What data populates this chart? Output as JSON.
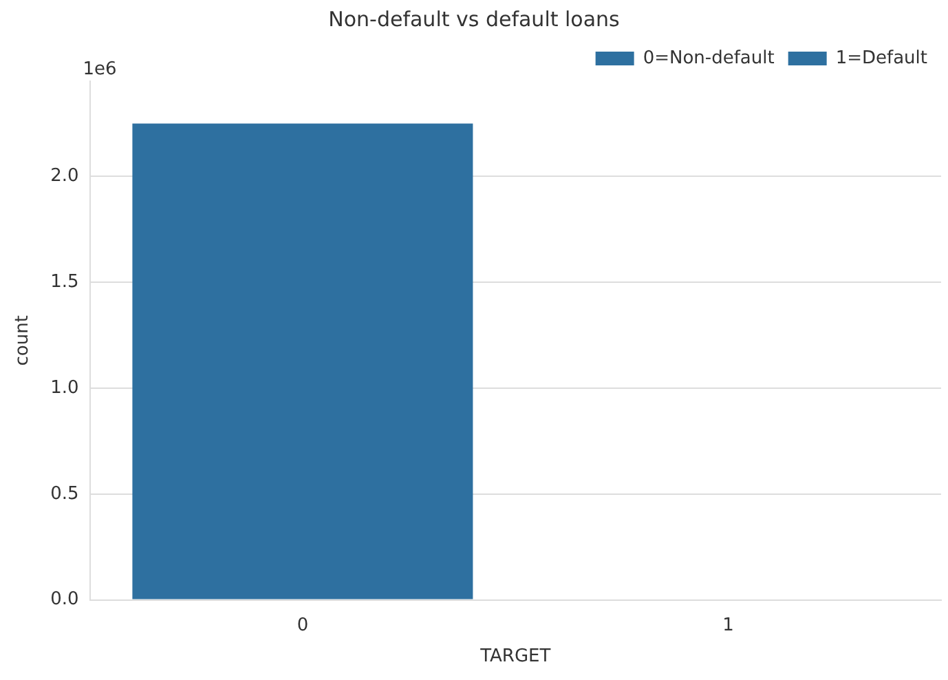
{
  "chart_data": {
    "type": "bar",
    "title": "Non-default vs default loans",
    "xlabel": "TARGET",
    "ylabel": "count",
    "categories": [
      "0",
      "1"
    ],
    "series": [
      {
        "name": "0=Non-default",
        "color": "#2e70a0",
        "values": [
          2.25,
          null
        ]
      },
      {
        "name": "1=Default",
        "color": "#2e70a0",
        "values": [
          null,
          0
        ]
      }
    ],
    "ylim": [
      0,
      2.45
    ],
    "yticks": [
      {
        "value": 0,
        "label": "0.0"
      },
      0.5,
      {
        "value": 1,
        "label": "1.0"
      },
      1.5,
      {
        "value": 2,
        "label": "2.0"
      }
    ],
    "grid": "y",
    "legend": "top right",
    "annotations": [
      "1e6"
    ]
  }
}
